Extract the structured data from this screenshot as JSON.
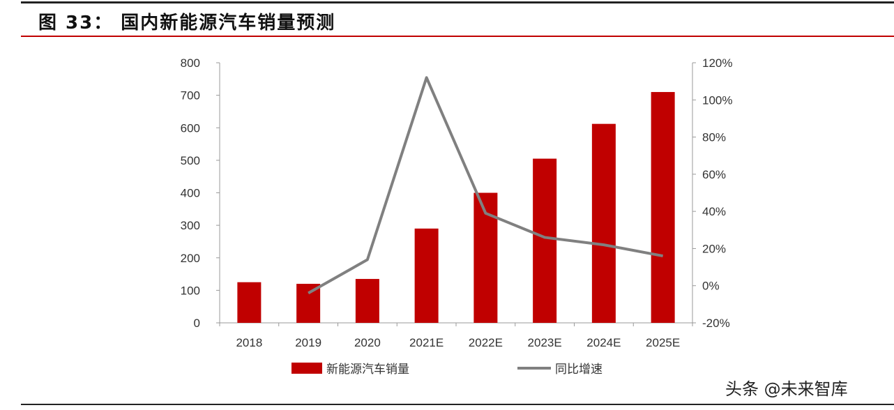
{
  "title": "图 33： 国内新能源汽车销量预测",
  "watermark": "头条 @未来智库",
  "chart_data": {
    "type": "bar+line",
    "categories": [
      "2018",
      "2019",
      "2020",
      "2021E",
      "2022E",
      "2023E",
      "2024E",
      "2025E"
    ],
    "series": [
      {
        "name": "新能源汽车销量",
        "type": "bar",
        "axis": "left",
        "color": "#c00000",
        "values": [
          125,
          120,
          135,
          290,
          400,
          505,
          612,
          710
        ]
      },
      {
        "name": "同比增速",
        "type": "line",
        "axis": "right",
        "color": "#808080",
        "values": [
          null,
          -4,
          14,
          112,
          39,
          26,
          22,
          16
        ]
      }
    ],
    "left_axis": {
      "ylim": [
        0,
        800
      ],
      "ticks": [
        "0",
        "100",
        "200",
        "300",
        "400",
        "500",
        "600",
        "700",
        "800"
      ]
    },
    "right_axis": {
      "ylim": [
        -20,
        120
      ],
      "ticks": [
        "-20%",
        "0%",
        "20%",
        "40%",
        "60%",
        "80%",
        "100%",
        "120%"
      ]
    },
    "grid": false,
    "legend": "bottom"
  }
}
